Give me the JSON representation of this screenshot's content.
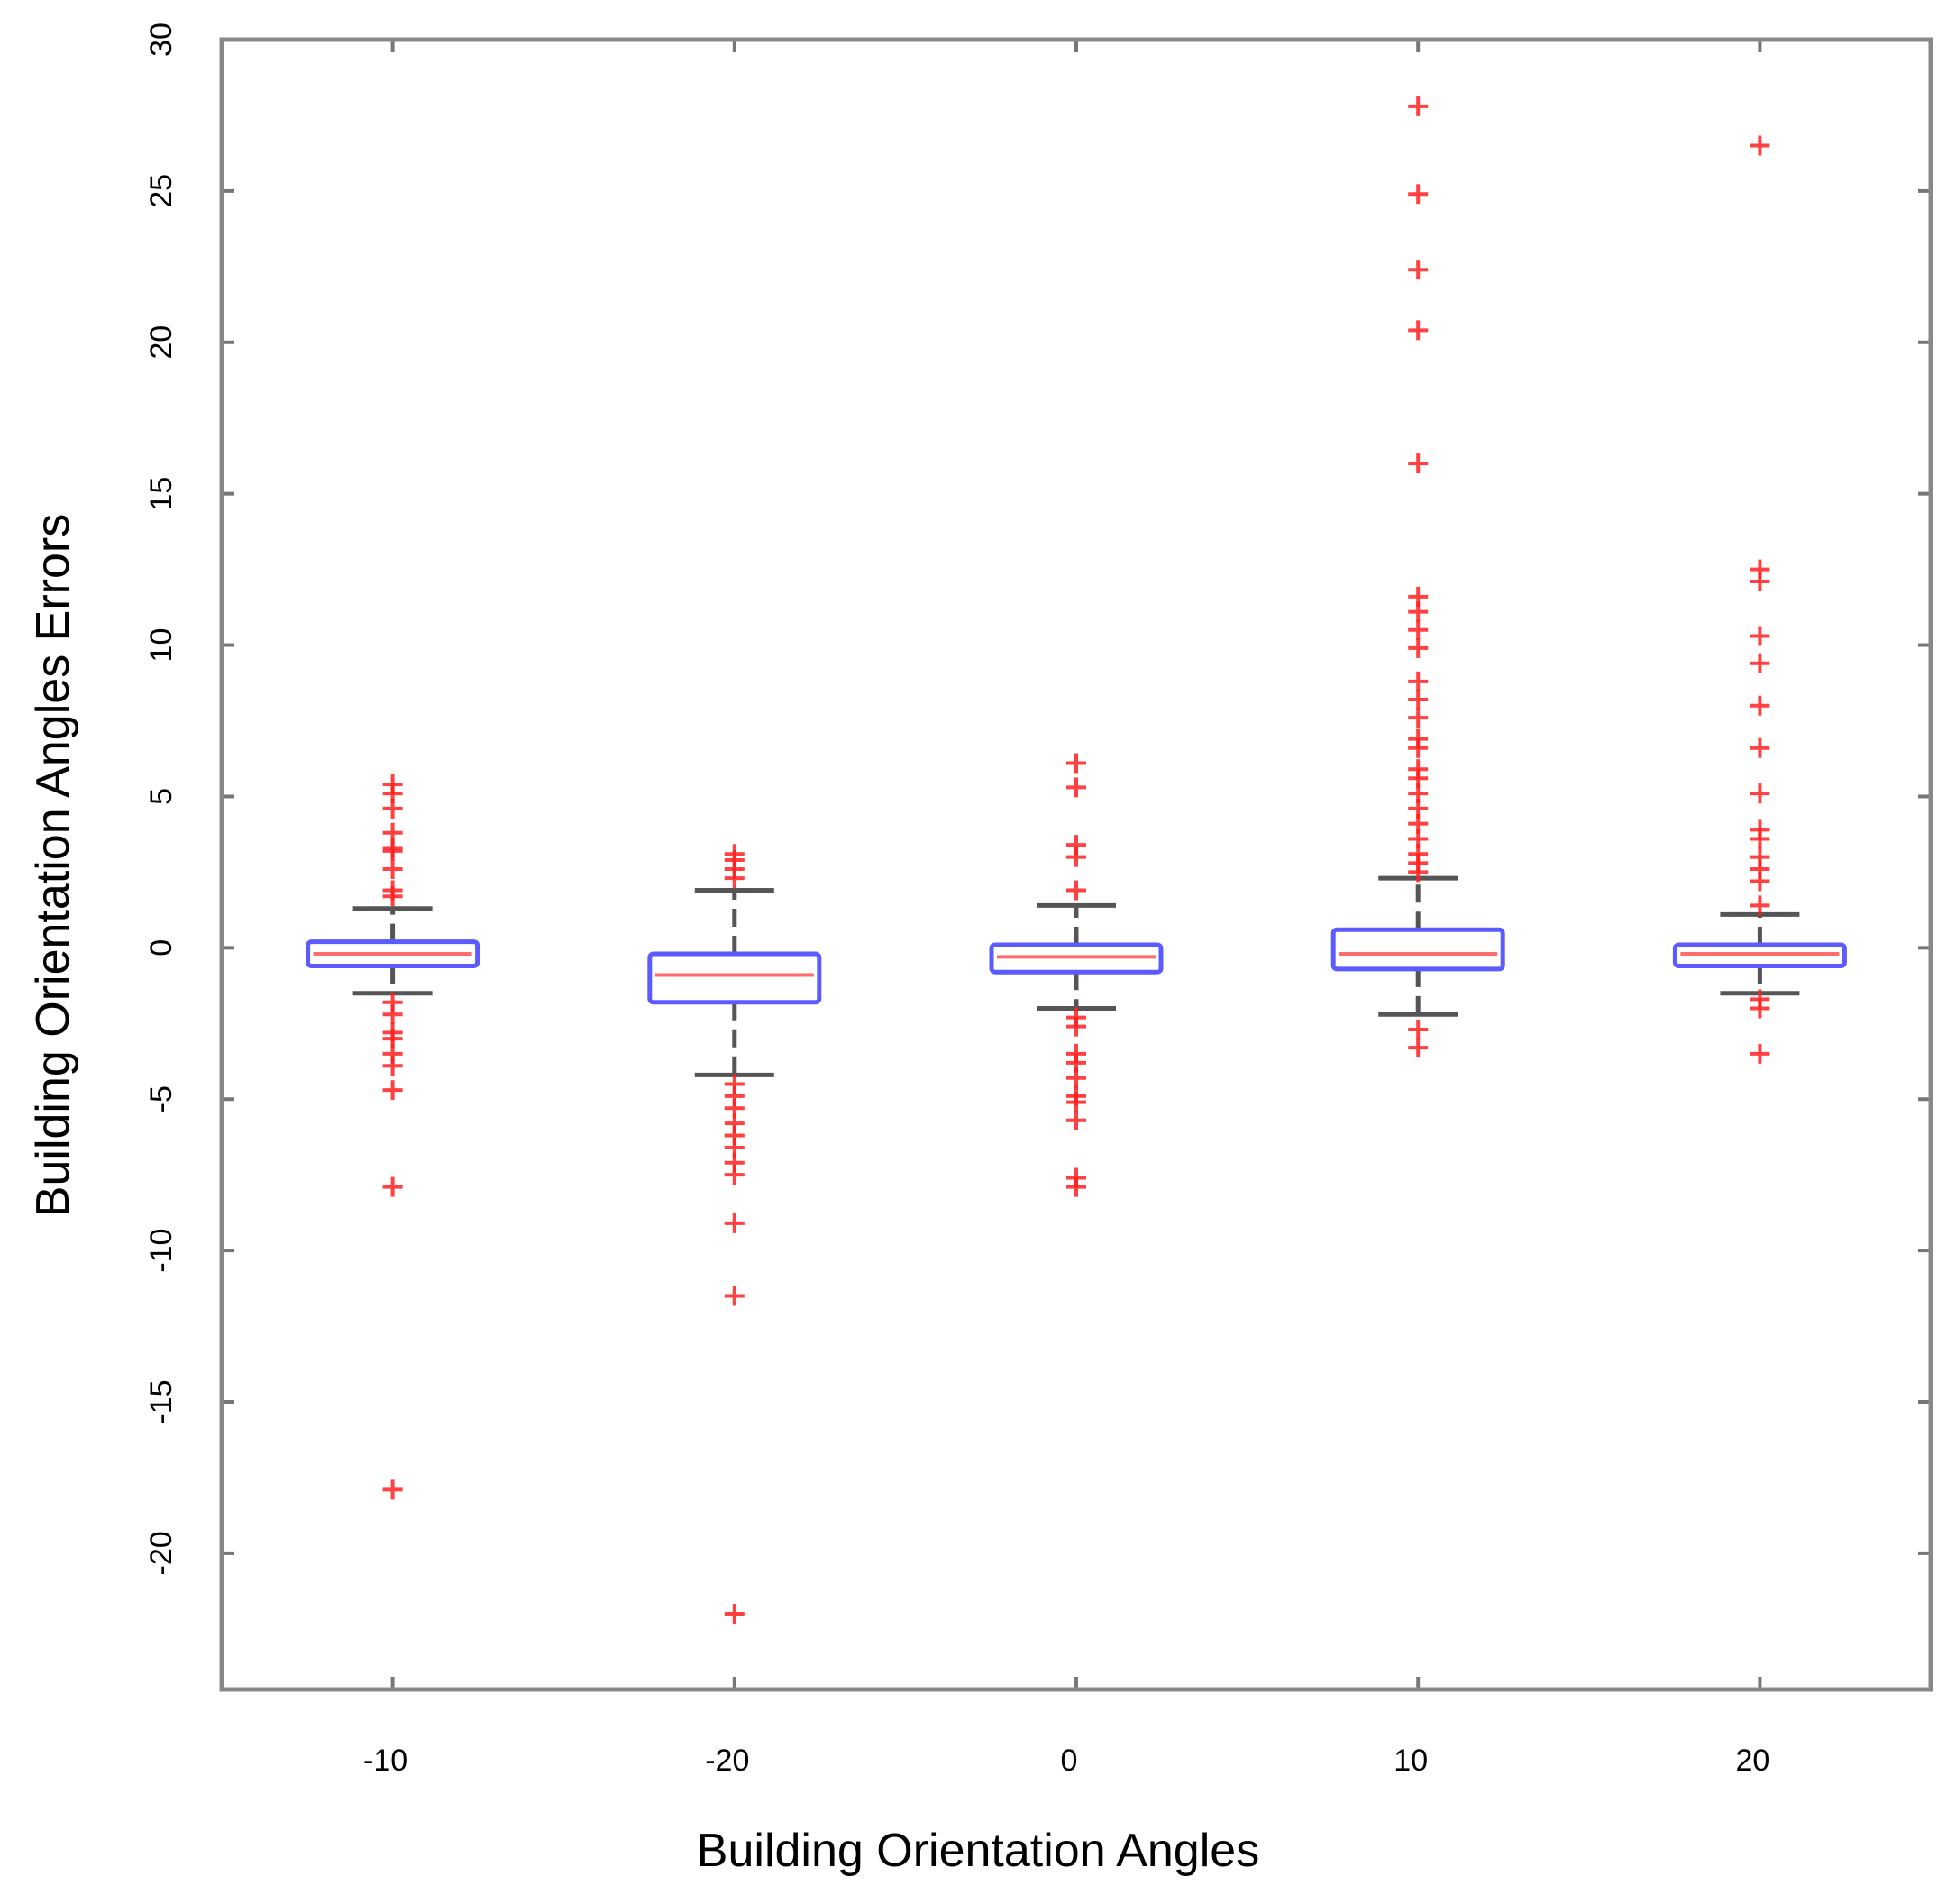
{
  "chart_data": {
    "type": "box",
    "xlabel": "Building Orientation Angles",
    "ylabel": "Building Orientation  Angles Errors",
    "ylim": [
      -24.5,
      30
    ],
    "yticks": [
      30,
      25,
      20,
      15,
      10,
      5,
      0,
      -5,
      -10,
      -15,
      -20
    ],
    "ytick_labels": [
      "30",
      "25",
      "20",
      "15",
      "10",
      "5",
      "0",
      "-5",
      "-10",
      "-15",
      "-20"
    ],
    "categories": [
      "-10",
      "-20",
      "0",
      "10",
      "20"
    ],
    "colors": {
      "box": "#5b5bff",
      "median": "#ff6b6b",
      "whisker": "#555555",
      "outlier": "#ff2020",
      "frame": "#888888"
    },
    "boxes": [
      {
        "label": "-10",
        "q1": -0.6,
        "median": -0.2,
        "q3": 0.2,
        "whisker_low": -1.5,
        "whisker_high": 1.3,
        "outliers": [
          5.4,
          5.1,
          4.6,
          3.8,
          3.3,
          3.2,
          2.6,
          1.9,
          1.7,
          -1.8,
          -2.2,
          -2.8,
          -3.0,
          -3.5,
          -3.9,
          -4.7,
          -7.9,
          -17.9
        ]
      },
      {
        "label": "-20",
        "q1": -1.8,
        "median": -0.9,
        "q3": -0.2,
        "whisker_low": -4.2,
        "whisker_high": 1.9,
        "outliers": [
          3.1,
          2.9,
          2.6,
          2.3,
          -4.5,
          -4.9,
          -5.3,
          -5.8,
          -6.2,
          -6.6,
          -7.1,
          -7.5,
          -9.1,
          -11.5,
          -22.0
        ]
      },
      {
        "label": "0",
        "q1": -0.8,
        "median": -0.3,
        "q3": 0.1,
        "whisker_low": -2.0,
        "whisker_high": 1.4,
        "outliers": [
          6.1,
          5.3,
          3.4,
          3.0,
          1.9,
          -2.3,
          -2.6,
          -3.5,
          -3.8,
          -4.3,
          -4.9,
          -5.1,
          -5.7,
          -7.6,
          -7.9
        ]
      },
      {
        "label": "10",
        "q1": -0.7,
        "median": -0.2,
        "q3": 0.6,
        "whisker_low": -2.2,
        "whisker_high": 2.3,
        "outliers": [
          27.8,
          24.9,
          22.4,
          20.4,
          16.0,
          11.6,
          11.1,
          10.5,
          9.9,
          8.8,
          8.2,
          7.6,
          6.9,
          6.6,
          5.9,
          5.6,
          5.1,
          4.6,
          4.1,
          3.6,
          3.1,
          2.8,
          2.5,
          -2.7,
          -3.3
        ]
      },
      {
        "label": "20",
        "q1": -0.6,
        "median": -0.2,
        "q3": 0.1,
        "whisker_low": -1.5,
        "whisker_high": 1.1,
        "outliers": [
          26.5,
          12.5,
          12.1,
          10.3,
          9.4,
          8.0,
          6.6,
          5.1,
          3.9,
          3.6,
          3.0,
          2.6,
          2.2,
          1.4,
          -1.7,
          -2.0,
          -3.5
        ]
      }
    ]
  }
}
